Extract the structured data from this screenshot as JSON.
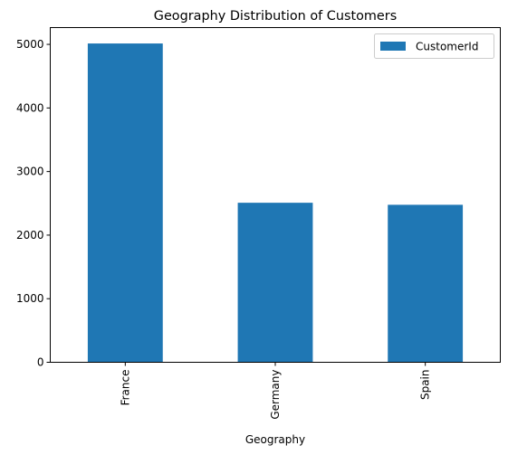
{
  "chart_data": {
    "type": "bar",
    "title": "Geography Distribution of Customers",
    "xlabel": "Geography",
    "ylabel": "",
    "categories": [
      "France",
      "Germany",
      "Spain"
    ],
    "series": [
      {
        "name": "CustomerId",
        "values": [
          5014,
          2509,
          2477
        ],
        "color": "#1f77b4"
      }
    ],
    "ylim": [
      0,
      5264
    ],
    "yticks": [
      0,
      1000,
      2000,
      3000,
      4000,
      5000
    ],
    "ytick_labels": [
      "0",
      "1000",
      "2000",
      "3000",
      "4000",
      "5000"
    ],
    "x_tick_rotation": 90,
    "legend": {
      "position": "top-right",
      "entries": [
        "CustomerId"
      ]
    },
    "grid": false
  }
}
